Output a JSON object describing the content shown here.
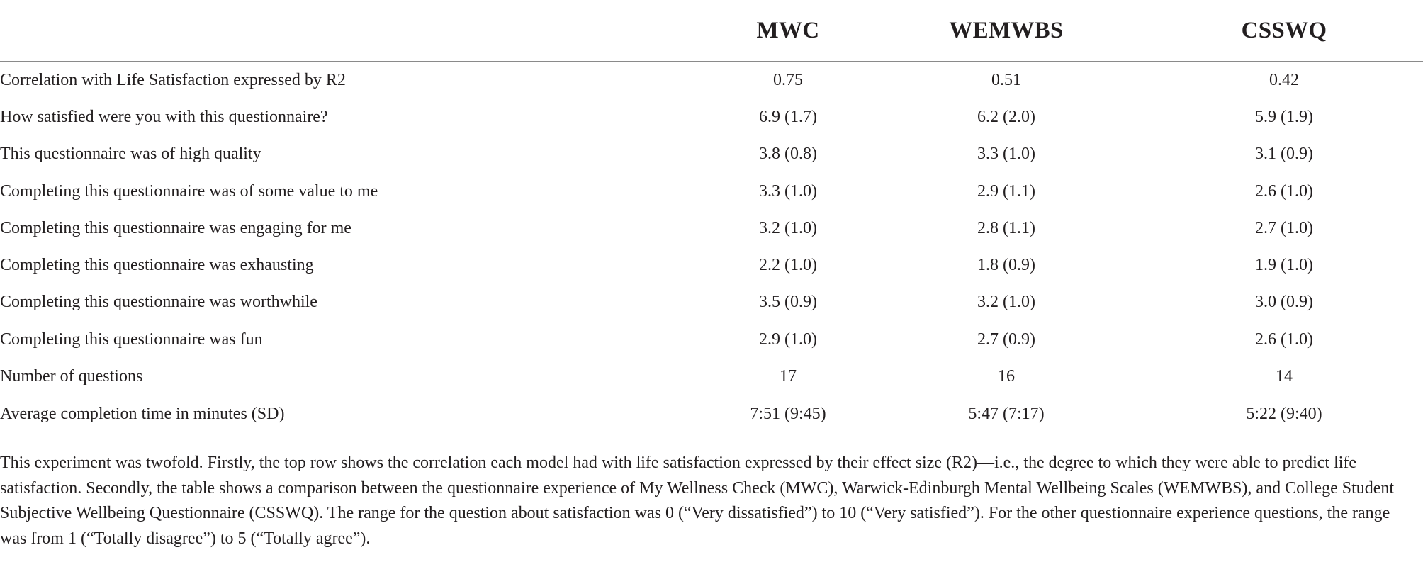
{
  "table": {
    "headers": [
      "",
      "MWC",
      "WEMWBS",
      "CSSWQ"
    ],
    "rows": [
      {
        "label": "Correlation with Life Satisfaction expressed by R2",
        "mwc": "0.75",
        "wemwbs": "0.51",
        "csswq": "0.42"
      },
      {
        "label": "How satisfied were you with this questionnaire?",
        "mwc": "6.9 (1.7)",
        "wemwbs": "6.2 (2.0)",
        "csswq": "5.9 (1.9)"
      },
      {
        "label": "This questionnaire was of high quality",
        "mwc": "3.8 (0.8)",
        "wemwbs": "3.3 (1.0)",
        "csswq": "3.1 (0.9)"
      },
      {
        "label": "Completing this questionnaire was of some value to me",
        "mwc": "3.3 (1.0)",
        "wemwbs": "2.9 (1.1)",
        "csswq": "2.6 (1.0)"
      },
      {
        "label": "Completing this questionnaire was engaging for me",
        "mwc": "3.2 (1.0)",
        "wemwbs": "2.8 (1.1)",
        "csswq": "2.7 (1.0)"
      },
      {
        "label": "Completing this questionnaire was exhausting",
        "mwc": "2.2 (1.0)",
        "wemwbs": "1.8 (0.9)",
        "csswq": "1.9 (1.0)"
      },
      {
        "label": "Completing this questionnaire was worthwhile",
        "mwc": "3.5 (0.9)",
        "wemwbs": "3.2 (1.0)",
        "csswq": "3.0 (0.9)"
      },
      {
        "label": "Completing this questionnaire was fun",
        "mwc": "2.9 (1.0)",
        "wemwbs": "2.7 (0.9)",
        "csswq": "2.6 (1.0)"
      },
      {
        "label": "Number of questions",
        "mwc": "17",
        "wemwbs": "16",
        "csswq": "14"
      },
      {
        "label": "Average completion time in minutes (SD)",
        "mwc": "7:51 (9:45)",
        "wemwbs": "5:47 (7:17)",
        "csswq": "5:22 (9:40)"
      }
    ]
  },
  "footnote": "This experiment was twofold. Firstly, the top row shows the correlation each model had with life satisfaction expressed by their effect size (R2)—i.e., the degree to which they were able to predict life satisfaction. Secondly, the table shows a comparison between the questionnaire experience of My Wellness Check (MWC), Warwick-Edinburgh Mental Wellbeing Scales (WEMWBS), and College Student Subjective Wellbeing Questionnaire (CSSWQ). The range for the question about satisfaction was 0 (“Very dissatisfied”) to 10 (“Very satisfied”). For the other questionnaire experience questions, the range was from 1 (“Totally disagree”) to 5 (“Totally agree”)."
}
